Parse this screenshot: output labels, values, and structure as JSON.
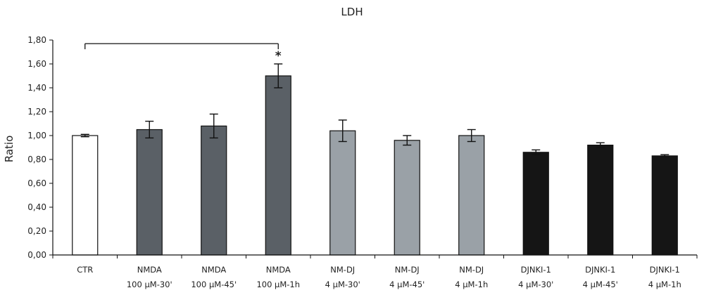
{
  "chart_data": {
    "type": "bar",
    "title": "LDH",
    "xlabel": "",
    "ylabel": "Ratio",
    "ylim": [
      0,
      1.8
    ],
    "ytick_step": 0.2,
    "ytick_labels": [
      "0,00",
      "0,20",
      "0,40",
      "0,60",
      "0,80",
      "1,00",
      "1,20",
      "1,40",
      "1,60",
      "1,80"
    ],
    "grid": false,
    "categories": [
      {
        "line1": "CTR",
        "line2": ""
      },
      {
        "line1": "NMDA",
        "line2": "100 µM-30'"
      },
      {
        "line1": "NMDA",
        "line2": "100 µM-45'"
      },
      {
        "line1": "NMDA",
        "line2": "100 µM-1h"
      },
      {
        "line1": "NM-DJ",
        "line2": "4 µM-30'"
      },
      {
        "line1": "NM-DJ",
        "line2": "4 µM-45'"
      },
      {
        "line1": "NM-DJ",
        "line2": "4 µM-1h"
      },
      {
        "line1": "DJNKI-1",
        "line2": "4 µM-30'"
      },
      {
        "line1": "DJNKI-1",
        "line2": "4 µM-45'"
      },
      {
        "line1": "DJNKI-1",
        "line2": "4 µM-1h"
      }
    ],
    "values": [
      1.0,
      1.05,
      1.08,
      1.5,
      1.04,
      0.96,
      1.0,
      0.86,
      0.92,
      0.83
    ],
    "errors": [
      0.01,
      0.07,
      0.1,
      0.1,
      0.09,
      0.04,
      0.05,
      0.02,
      0.02,
      0.01
    ],
    "colors": [
      "#ffffff",
      "#5a6066",
      "#5a6066",
      "#5a6066",
      "#9aa1a7",
      "#9aa1a7",
      "#9aa1a7",
      "#151515",
      "#151515",
      "#151515"
    ],
    "significance": {
      "from_index": 0,
      "to_index": 3,
      "bracket_value": 1.77,
      "label": "*"
    }
  }
}
